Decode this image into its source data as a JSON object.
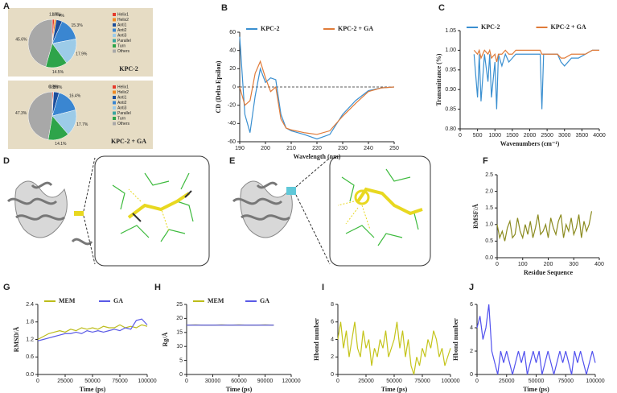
{
  "chart_data": [
    {
      "type": "pie",
      "panel": "A",
      "label": "KPC-2",
      "categories": [
        "Helix1",
        "Helix2",
        "Anti1",
        "Anti2",
        "Anti3",
        "Parallel",
        "Turn",
        "Others"
      ],
      "values": [
        1.4,
        1.3,
        4,
        15.3,
        17.9,
        0,
        14.5,
        45.6
      ],
      "value_labels": [
        "1.4%",
        "1.3%",
        "4%",
        "15.3%",
        "17.9%",
        null,
        "14.5%",
        "45.6%"
      ],
      "colors": [
        "#e53b2c",
        "#f08a24",
        "#1d4f9c",
        "#3a86d1",
        "#9ccbe8",
        "#3aa6a0",
        "#2ea44a",
        "#a8a8a8"
      ]
    },
    {
      "type": "pie",
      "label": "KPC-2 + GA",
      "categories": [
        "Helix1",
        "Helix2",
        "Anti1",
        "Anti2",
        "Anti3",
        "Parallel",
        "Turn",
        "Others"
      ],
      "values": [
        0.8,
        0.1,
        3.7,
        16.4,
        17.7,
        0,
        14.1,
        47.3
      ],
      "value_labels": [
        "0.8%",
        "0.1%",
        "3.7%",
        "16.4%",
        "17.7%",
        null,
        "14.1%",
        "47.3%"
      ],
      "colors": [
        "#e53b2c",
        "#f08a24",
        "#1d4f9c",
        "#3a86d1",
        "#9ccbe8",
        "#3aa6a0",
        "#2ea44a",
        "#a8a8a8"
      ]
    },
    {
      "type": "line",
      "panel": "B",
      "xlabel": "Wavelength (nm)",
      "ylabel": "CD (Delta Epsilon)",
      "x": [
        190,
        192,
        194,
        196,
        198,
        200,
        202,
        204,
        206,
        208,
        210,
        215,
        220,
        225,
        230,
        235,
        240,
        245,
        250
      ],
      "series": [
        {
          "name": "KPC-2",
          "color": "#3a8fd0",
          "values": [
            55,
            -30,
            -50,
            -10,
            20,
            5,
            10,
            8,
            -30,
            -45,
            -48,
            -52,
            -57,
            -52,
            -30,
            -15,
            -4,
            -1,
            0
          ]
        },
        {
          "name": "KPC-2 + GA",
          "color": "#e07b39",
          "values": [
            0,
            -20,
            -15,
            15,
            28,
            10,
            -5,
            0,
            -35,
            -45,
            -47,
            -50,
            -52,
            -48,
            -32,
            -18,
            -5,
            -1,
            0
          ]
        }
      ],
      "reference_line": 0,
      "xlim": [
        190,
        250
      ],
      "xticks": [
        190,
        200,
        210,
        220,
        230,
        240,
        250
      ],
      "ylim": [
        -60,
        60
      ],
      "yticks": [
        -60,
        -40,
        -20,
        0,
        20,
        40,
        60
      ]
    },
    {
      "type": "line",
      "panel": "C",
      "xlabel": "Wavenumbers (cm⁻¹)",
      "ylabel": "Transmittance (%)",
      "x": [
        400,
        500,
        550,
        600,
        700,
        800,
        850,
        900,
        1000,
        1050,
        1100,
        1200,
        1300,
        1400,
        1500,
        1600,
        1700,
        2000,
        2300,
        2350,
        2400,
        2500,
        2800,
        2900,
        3000,
        3200,
        3400,
        3600,
        3800,
        4000
      ],
      "series": [
        {
          "name": "KPC-2",
          "color": "#3a8fd0",
          "values": [
            0.99,
            0.88,
            0.99,
            0.87,
            0.99,
            0.92,
            0.99,
            0.88,
            0.97,
            0.85,
            0.99,
            0.96,
            0.99,
            0.97,
            0.98,
            0.99,
            0.99,
            0.99,
            0.99,
            0.85,
            0.99,
            0.99,
            0.99,
            0.97,
            0.96,
            0.98,
            0.98,
            0.99,
            1.0,
            1.0
          ]
        },
        {
          "name": "KPC-2 + GA",
          "color": "#e07b39",
          "values": [
            1.0,
            0.99,
            1.0,
            0.98,
            1.0,
            0.99,
            1.0,
            0.98,
            0.99,
            0.97,
            0.99,
            0.99,
            1.0,
            0.99,
            0.99,
            1.0,
            1.0,
            1.0,
            1.0,
            0.99,
            0.99,
            0.99,
            0.99,
            0.98,
            0.98,
            0.99,
            0.99,
            0.99,
            1.0,
            1.0
          ]
        }
      ],
      "xlim": [
        0,
        4000
      ],
      "xticks": [
        0,
        500,
        1000,
        1500,
        2000,
        2500,
        3000,
        3500,
        4000
      ],
      "ylim": [
        0.8,
        1.05
      ],
      "yticks": [
        {
          "value": 0.8,
          "label": "0.80"
        },
        0.85,
        {
          "value": 0.9,
          "label": "0.90"
        },
        0.95,
        {
          "value": 1.0,
          "label": "1.00"
        },
        1.05
      ]
    },
    {
      "type": "line",
      "panel": "F",
      "xlabel": "Residue Sequence",
      "ylabel": "RMSF/Å",
      "x": [
        0,
        10,
        20,
        30,
        40,
        50,
        60,
        70,
        80,
        90,
        100,
        110,
        120,
        130,
        140,
        150,
        160,
        170,
        180,
        190,
        200,
        210,
        220,
        230,
        240,
        250,
        260,
        270,
        280,
        290,
        300,
        310,
        320,
        330,
        340,
        350,
        360,
        370
      ],
      "series": [
        {
          "color": "#8a8a1e",
          "values": [
            1.0,
            0.6,
            0.8,
            0.5,
            0.9,
            1.1,
            0.6,
            0.7,
            1.2,
            0.8,
            0.6,
            1.0,
            0.7,
            1.1,
            0.6,
            0.9,
            1.3,
            0.7,
            0.8,
            1.0,
            0.6,
            1.2,
            0.9,
            0.7,
            1.1,
            1.3,
            0.6,
            1.0,
            0.8,
            1.2,
            0.7,
            0.9,
            1.3,
            0.6,
            1.1,
            0.8,
            1.0,
            1.4
          ]
        }
      ],
      "xlim": [
        0,
        400
      ],
      "xticks": [
        0,
        100,
        200,
        300,
        400
      ],
      "ylim": [
        0,
        2.5
      ],
      "yticks": [
        {
          "value": 0,
          "label": "0.0"
        },
        0.5,
        {
          "value": 1,
          "label": "1.0"
        },
        1.5,
        {
          "value": 2,
          "label": "2.0"
        },
        2.5
      ]
    },
    {
      "type": "line",
      "panel": "G",
      "xlabel": "Time (ps)",
      "ylabel": "RMSD/Å",
      "x": [
        0,
        5000,
        10000,
        15000,
        20000,
        25000,
        30000,
        35000,
        40000,
        45000,
        50000,
        55000,
        60000,
        65000,
        70000,
        75000,
        80000,
        85000,
        90000,
        95000,
        100000
      ],
      "series": [
        {
          "name": "MEM",
          "color": "#bcbc1a",
          "values": [
            1.2,
            1.3,
            1.4,
            1.45,
            1.5,
            1.45,
            1.55,
            1.5,
            1.6,
            1.55,
            1.6,
            1.55,
            1.65,
            1.6,
            1.6,
            1.7,
            1.6,
            1.65,
            1.6,
            1.7,
            1.65
          ]
        },
        {
          "name": "GA",
          "color": "#5a5ae6",
          "values": [
            1.15,
            1.2,
            1.25,
            1.3,
            1.35,
            1.4,
            1.4,
            1.45,
            1.4,
            1.5,
            1.45,
            1.5,
            1.45,
            1.5,
            1.55,
            1.5,
            1.6,
            1.55,
            1.85,
            1.9,
            1.7
          ]
        }
      ],
      "xlim": [
        0,
        100000
      ],
      "xticks": [
        0,
        25000,
        50000,
        75000,
        100000
      ],
      "ylim": [
        0,
        2.4
      ],
      "yticks": [
        {
          "value": 0,
          "label": "0.0"
        },
        0.6,
        1.2,
        1.8,
        2.4
      ]
    },
    {
      "type": "line",
      "panel": "H",
      "xlabel": "Time (ps)",
      "ylabel": "Rg/Å",
      "x": [
        0,
        10000,
        20000,
        30000,
        40000,
        50000,
        60000,
        70000,
        80000,
        90000,
        100000
      ],
      "series": [
        {
          "name": "MEM",
          "color": "#bcbc1a",
          "values": [
            17.6,
            17.7,
            17.6,
            17.6,
            17.7,
            17.6,
            17.7,
            17.6,
            17.6,
            17.7,
            17.6
          ]
        },
        {
          "name": "GA",
          "color": "#5a5ae6",
          "values": [
            17.6,
            17.6,
            17.6,
            17.6,
            17.6,
            17.6,
            17.6,
            17.6,
            17.6,
            17.6,
            17.6
          ]
        }
      ],
      "xlim": [
        0,
        120000
      ],
      "xticks": [
        0,
        30000,
        60000,
        90000,
        120000
      ],
      "ylim": [
        0,
        25
      ],
      "yticks": [
        0,
        5,
        10,
        15,
        20,
        25
      ]
    },
    {
      "type": "line",
      "panel": "I",
      "xlabel": "Time (ps)",
      "ylabel": "Hbond number",
      "x": [
        0,
        2500,
        5000,
        7500,
        10000,
        12500,
        15000,
        17500,
        20000,
        22500,
        25000,
        27500,
        30000,
        32500,
        35000,
        37500,
        40000,
        42500,
        45000,
        47500,
        50000,
        52500,
        55000,
        57500,
        60000,
        62500,
        65000,
        67500,
        70000,
        72500,
        75000,
        77500,
        80000,
        82500,
        85000,
        87500,
        90000,
        92500,
        95000,
        97500,
        100000
      ],
      "series": [
        {
          "color": "#c4c41a",
          "values": [
            4,
            6,
            3,
            5,
            2,
            4,
            6,
            3,
            2,
            5,
            3,
            4,
            1,
            3,
            2,
            4,
            3,
            5,
            2,
            3,
            4,
            6,
            3,
            5,
            2,
            4,
            1,
            0,
            2,
            1,
            3,
            2,
            4,
            3,
            5,
            4,
            2,
            3,
            1,
            2,
            3
          ]
        }
      ],
      "xlim": [
        0,
        100000
      ],
      "xticks": [
        0,
        25000,
        50000,
        75000,
        100000
      ],
      "ylim": [
        0,
        8
      ],
      "yticks": [
        0,
        2,
        4,
        6,
        8
      ]
    },
    {
      "type": "line",
      "panel": "J",
      "xlabel": "Time (ps)",
      "ylabel": "Hbond number",
      "x": [
        0,
        2500,
        5000,
        7500,
        10000,
        12500,
        15000,
        17500,
        20000,
        22500,
        25000,
        27500,
        30000,
        32500,
        35000,
        37500,
        40000,
        42500,
        45000,
        47500,
        50000,
        52500,
        55000,
        57500,
        60000,
        62500,
        65000,
        67500,
        70000,
        72500,
        75000,
        77500,
        80000,
        82500,
        85000,
        87500,
        90000,
        92500,
        95000,
        97500,
        100000
      ],
      "series": [
        {
          "color": "#5050ee",
          "values": [
            4,
            5,
            3,
            4,
            6,
            2,
            1,
            0,
            2,
            1,
            2,
            1,
            0,
            1,
            2,
            1,
            2,
            0,
            1,
            2,
            1,
            2,
            0,
            1,
            2,
            1,
            0,
            1,
            2,
            1,
            2,
            1,
            0,
            2,
            1,
            2,
            1,
            0,
            1,
            2,
            1
          ]
        }
      ],
      "xlim": [
        0,
        100000
      ],
      "xticks": [
        0,
        25000,
        50000,
        75000,
        100000
      ],
      "ylim": [
        0,
        6
      ],
      "yticks": [
        0,
        2,
        4,
        6
      ]
    }
  ],
  "images": [
    {
      "panel": "D"
    },
    {
      "panel": "E"
    }
  ]
}
